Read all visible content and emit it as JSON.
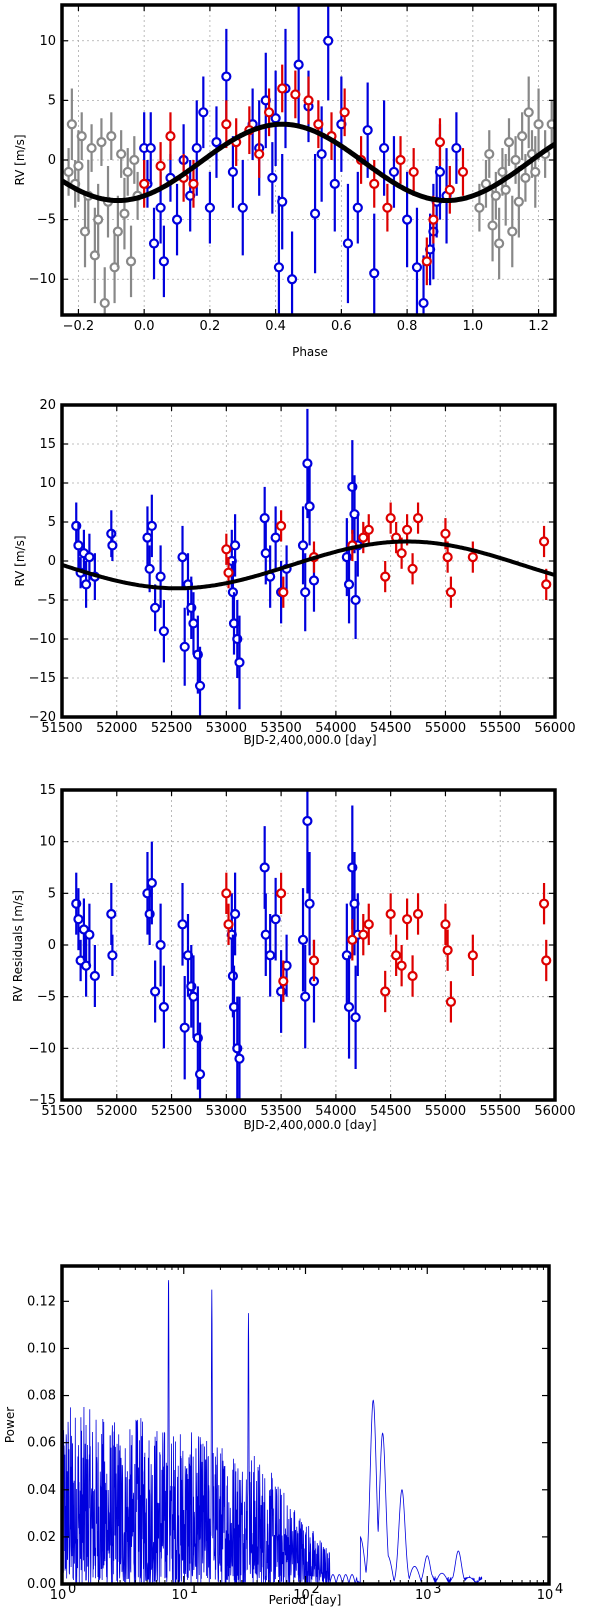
{
  "colors": {
    "old_data": "#888888",
    "blue_data": "#0000dd",
    "red_data": "#dd0000",
    "model": "#000000",
    "periodogram": "#0000dd"
  },
  "chart_data": [
    {
      "type": "scatter",
      "panel": "phase",
      "xlabel": "Phase",
      "ylabel": "RV [m/s]",
      "xlim": [
        -0.25,
        1.25
      ],
      "ylim": [
        -13,
        13
      ],
      "xticks": [
        -0.2,
        0.0,
        0.2,
        0.4,
        0.6,
        0.8,
        1.0,
        1.2
      ],
      "xtick_labels": [
        "−0.2",
        "0.0",
        "0.2",
        "0.4",
        "0.6",
        "0.8",
        "1.0",
        "1.2"
      ],
      "yticks": [
        -10,
        -5,
        0,
        5,
        10
      ],
      "ytick_labels": [
        "−10",
        "−5",
        "0",
        "5",
        "10"
      ],
      "grid": true,
      "model": {
        "type": "sine",
        "offset": -0.2,
        "amplitude": 3.2,
        "phase_of_max": 0.42
      },
      "series": [
        {
          "name": "extended phase (repeated)",
          "color": "#888888",
          "x": [
            -0.23,
            -0.22,
            -0.21,
            -0.2,
            -0.19,
            -0.18,
            -0.17,
            -0.16,
            -0.15,
            -0.14,
            -0.13,
            -0.12,
            -0.11,
            -0.1,
            -0.09,
            -0.08,
            -0.07,
            -0.06,
            -0.05,
            -0.04,
            -0.03,
            -0.02,
            1.02,
            1.04,
            1.05,
            1.06,
            1.07,
            1.08,
            1.09,
            1.1,
            1.11,
            1.12,
            1.13,
            1.14,
            1.15,
            1.16,
            1.17,
            1.18,
            1.19,
            1.2,
            1.22,
            1.24
          ],
          "y": [
            -1.0,
            3.0,
            -2.0,
            -0.5,
            2.0,
            -6.0,
            -3.0,
            1.0,
            -8.0,
            -5.0,
            1.5,
            -12.0,
            -3.5,
            2.0,
            -9.0,
            -6.0,
            0.5,
            -4.5,
            -1.0,
            -8.5,
            0.0,
            -3.0,
            -4.0,
            -2.0,
            0.5,
            -5.5,
            -3.0,
            -7.0,
            -1.0,
            -2.5,
            1.5,
            -6.0,
            0.0,
            -3.5,
            2.0,
            -1.5,
            4.0,
            0.5,
            -1.0,
            3.0,
            0.5,
            3.0
          ],
          "err": [
            2,
            3,
            2,
            3,
            2,
            3,
            3,
            2,
            4,
            3,
            2,
            3,
            3,
            2,
            3,
            3,
            2,
            3,
            2,
            3,
            2,
            2,
            2,
            2,
            2,
            3,
            2,
            3,
            2,
            3,
            2,
            3,
            2,
            3,
            2,
            2,
            3,
            2,
            3,
            3,
            2,
            2
          ]
        },
        {
          "name": "blue",
          "color": "#0000dd",
          "x": [
            0.0,
            0.01,
            0.02,
            0.03,
            0.05,
            0.06,
            0.08,
            0.1,
            0.12,
            0.14,
            0.16,
            0.18,
            0.2,
            0.22,
            0.25,
            0.27,
            0.3,
            0.33,
            0.35,
            0.37,
            0.39,
            0.4,
            0.41,
            0.42,
            0.43,
            0.45,
            0.47,
            0.5,
            0.52,
            0.54,
            0.56,
            0.58,
            0.6,
            0.62,
            0.65,
            0.68,
            0.7,
            0.73,
            0.76,
            0.8,
            0.83,
            0.85,
            0.87,
            0.88,
            0.89,
            0.9,
            0.92,
            0.95
          ],
          "y": [
            1.0,
            -2.0,
            1.0,
            -7.0,
            -4.0,
            -8.5,
            -1.5,
            -5.0,
            0.0,
            -3.0,
            1.0,
            4.0,
            -4.0,
            1.5,
            7.0,
            -1.0,
            -4.0,
            3.0,
            1.0,
            5.0,
            -1.5,
            3.5,
            -9.0,
            -3.5,
            6.0,
            -10.0,
            8.0,
            4.5,
            -4.5,
            0.5,
            10.0,
            -2.0,
            3.0,
            -7.0,
            -4.0,
            2.5,
            -9.5,
            1.0,
            -1.0,
            -5.0,
            -9.0,
            -12.0,
            -7.5,
            -6.0,
            -3.5,
            -1.0,
            -3.0,
            1.0
          ],
          "err": [
            3,
            2,
            3,
            3,
            3,
            3,
            2,
            3,
            3,
            3,
            4,
            3,
            3,
            3,
            4,
            3,
            4,
            3,
            4,
            4,
            3,
            4,
            6,
            4,
            5,
            4,
            5,
            3,
            5,
            4,
            5,
            4,
            4,
            5,
            3,
            4,
            5,
            4,
            3,
            4,
            5,
            4,
            3,
            4,
            3,
            4,
            4,
            3
          ]
        },
        {
          "name": "red",
          "color": "#dd0000",
          "x": [
            0.0,
            0.05,
            0.08,
            0.12,
            0.15,
            0.25,
            0.28,
            0.32,
            0.35,
            0.38,
            0.42,
            0.46,
            0.5,
            0.53,
            0.57,
            0.61,
            0.66,
            0.7,
            0.74,
            0.78,
            0.82,
            0.86,
            0.88,
            0.9,
            0.93,
            0.97
          ],
          "y": [
            -2.0,
            -0.5,
            2.0,
            -1.5,
            -2.0,
            3.0,
            1.5,
            2.5,
            0.5,
            4.0,
            6.0,
            5.5,
            5.0,
            3.0,
            2.0,
            4.0,
            0.0,
            -2.0,
            -4.0,
            0.0,
            -1.0,
            -8.5,
            -5.0,
            1.5,
            -2.5,
            -1.0
          ],
          "err": [
            2,
            2,
            2,
            2,
            2,
            2,
            2,
            2,
            2,
            2,
            2,
            2,
            2,
            2,
            2,
            2,
            2,
            2,
            2,
            2,
            2,
            2,
            2,
            2,
            2,
            2
          ]
        }
      ]
    },
    {
      "type": "scatter",
      "panel": "time",
      "xlabel": "BJD-2,400,000.0 [day]",
      "ylabel": "RV [m/s]",
      "xlim": [
        51500,
        56000
      ],
      "ylim": [
        -20,
        20
      ],
      "xticks": [
        51500,
        52000,
        52500,
        53000,
        53500,
        54000,
        54500,
        55000,
        55500,
        56000
      ],
      "xtick_labels": [
        "51500",
        "52000",
        "52500",
        "53000",
        "53500",
        "54000",
        "54500",
        "55000",
        "55500",
        "56000"
      ],
      "yticks": [
        -20,
        -15,
        -10,
        -5,
        0,
        5,
        10,
        15,
        20
      ],
      "ytick_labels": [
        "−20",
        "−15",
        "−10",
        "−5",
        "0",
        "5",
        "10",
        "15",
        "20"
      ],
      "grid": true,
      "model": {
        "type": "sine",
        "offset": -0.5,
        "amplitude": 3.0,
        "period": 4200,
        "t_max": 54650
      },
      "series": [
        {
          "name": "blue",
          "color": "#0000dd",
          "x": [
            51630,
            51650,
            51670,
            51700,
            51720,
            51750,
            51800,
            51950,
            51960,
            52280,
            52300,
            52320,
            52350,
            52400,
            52430,
            52600,
            52620,
            52650,
            52680,
            52700,
            52740,
            52760,
            53050,
            53060,
            53070,
            53080,
            53100,
            53120,
            53350,
            53360,
            53400,
            53450,
            53500,
            53550,
            53700,
            53720,
            53740,
            53760,
            53800,
            54100,
            54120,
            54150,
            54170,
            54180,
            54200
          ],
          "y": [
            4.5,
            2.0,
            -1.5,
            1.0,
            -3.0,
            0.5,
            -2.0,
            3.5,
            2.0,
            3.0,
            -1.0,
            4.5,
            -6.0,
            -2.0,
            -9.0,
            0.5,
            -11.0,
            -3.0,
            -6.0,
            -8.0,
            -12.0,
            -16.0,
            0.0,
            -4.0,
            -8.0,
            2.0,
            -10.0,
            -13.0,
            5.5,
            1.0,
            -2.0,
            3.0,
            -4.0,
            -1.0,
            2.0,
            -4.0,
            12.5,
            7.0,
            -2.5,
            0.5,
            -3.0,
            9.5,
            6.0,
            -5.0,
            2.0
          ],
          "err": [
            3,
            3,
            2,
            3,
            3,
            3,
            3,
            3,
            2,
            4,
            3,
            4,
            3,
            4,
            4,
            4,
            5,
            4,
            4,
            4,
            5,
            5,
            4,
            4,
            4,
            4,
            5,
            6,
            4,
            4,
            4,
            4,
            4,
            3,
            5,
            5,
            7,
            5,
            4,
            5,
            5,
            6,
            5,
            5,
            4
          ]
        },
        {
          "name": "red",
          "color": "#dd0000",
          "x": [
            53000,
            53020,
            53500,
            53520,
            53800,
            54150,
            54250,
            54300,
            54450,
            54500,
            54550,
            54600,
            54650,
            54700,
            54750,
            55000,
            55020,
            55050,
            55250,
            55900,
            55920
          ],
          "y": [
            1.5,
            -1.5,
            4.5,
            -4.0,
            0.5,
            2.0,
            3.0,
            4.0,
            -2.0,
            5.5,
            3.0,
            1.0,
            4.0,
            -1.0,
            5.5,
            3.5,
            0.5,
            -4.0,
            0.5,
            2.5,
            -3.0
          ],
          "err": [
            2,
            2,
            2,
            2,
            2,
            2,
            2,
            2,
            2,
            2,
            2,
            2,
            2,
            2,
            2,
            2,
            2,
            2,
            2,
            2,
            2
          ]
        }
      ]
    },
    {
      "type": "scatter",
      "panel": "residuals",
      "xlabel": "BJD-2,400,000.0 [day]",
      "ylabel": "RV Residuals [m/s]",
      "xlim": [
        51500,
        56000
      ],
      "ylim": [
        -15,
        15
      ],
      "xticks": [
        51500,
        52000,
        52500,
        53000,
        53500,
        54000,
        54500,
        55000,
        55500,
        56000
      ],
      "xtick_labels": [
        "51500",
        "52000",
        "52500",
        "53000",
        "53500",
        "54000",
        "54500",
        "55000",
        "55500",
        "56000"
      ],
      "yticks": [
        -15,
        -10,
        -5,
        0,
        5,
        10,
        15
      ],
      "ytick_labels": [
        "−15",
        "−10",
        "−5",
        "0",
        "5",
        "10",
        "15"
      ],
      "grid": true,
      "series": [
        {
          "name": "blue",
          "color": "#0000dd",
          "x": [
            51630,
            51650,
            51670,
            51700,
            51720,
            51750,
            51800,
            51950,
            51960,
            52280,
            52300,
            52320,
            52350,
            52400,
            52430,
            52600,
            52620,
            52650,
            52680,
            52700,
            52740,
            52760,
            53050,
            53060,
            53070,
            53080,
            53100,
            53120,
            53350,
            53360,
            53400,
            53450,
            53500,
            53550,
            53700,
            53720,
            53740,
            53760,
            53800,
            54100,
            54120,
            54150,
            54170,
            54180,
            54200
          ],
          "y": [
            4.0,
            2.5,
            -1.5,
            1.5,
            -2.0,
            1.0,
            -3.0,
            3.0,
            -1.0,
            5.0,
            3.0,
            6.0,
            -4.5,
            0.0,
            -6.0,
            2.0,
            -8.0,
            -1.0,
            -4.0,
            -5.0,
            -9.0,
            -12.5,
            1.0,
            -3.0,
            -6.0,
            3.0,
            -10.0,
            -11.0,
            7.5,
            1.0,
            -1.0,
            2.5,
            -4.5,
            -2.0,
            0.5,
            -5.0,
            12.0,
            4.0,
            -3.5,
            -1.0,
            -6.0,
            7.5,
            4.0,
            -7.0,
            1.0
          ],
          "err": [
            3,
            3,
            2,
            3,
            3,
            3,
            3,
            3,
            2,
            4,
            3,
            4,
            3,
            4,
            4,
            4,
            5,
            4,
            4,
            4,
            5,
            5,
            4,
            4,
            4,
            4,
            5,
            6,
            4,
            4,
            4,
            4,
            4,
            3,
            5,
            5,
            7,
            5,
            4,
            5,
            5,
            6,
            5,
            5,
            4
          ]
        },
        {
          "name": "red",
          "color": "#dd0000",
          "x": [
            53000,
            53020,
            53500,
            53520,
            53800,
            54150,
            54250,
            54300,
            54450,
            54500,
            54550,
            54600,
            54650,
            54700,
            54750,
            55000,
            55020,
            55050,
            55250,
            55900,
            55920
          ],
          "y": [
            5.0,
            2.0,
            5.0,
            -3.5,
            -1.5,
            0.5,
            1.0,
            2.0,
            -4.5,
            3.0,
            -1.0,
            -2.0,
            2.5,
            -3.0,
            3.0,
            2.0,
            -0.5,
            -5.5,
            -1.0,
            4.0,
            -1.5
          ],
          "err": [
            2,
            2,
            2,
            2,
            2,
            2,
            2,
            2,
            2,
            2,
            2,
            2,
            2,
            2,
            2,
            2,
            2,
            2,
            2,
            2,
            2
          ]
        }
      ]
    },
    {
      "type": "line",
      "panel": "periodogram",
      "xlabel": "Period [day]",
      "ylabel": "Power",
      "xscale": "log",
      "xlim": [
        1,
        10000
      ],
      "ylim": [
        0.0,
        0.135
      ],
      "xtick_labels": [
        "10",
        "10",
        "10",
        "10",
        "10"
      ],
      "xtick_exponents": [
        "0",
        "1",
        "2",
        "3",
        "4"
      ],
      "yticks": [
        0.0,
        0.02,
        0.04,
        0.06,
        0.08,
        0.1,
        0.12
      ],
      "ytick_labels": [
        "0.00",
        "0.02",
        "0.04",
        "0.06",
        "0.08",
        "0.10",
        "0.12"
      ],
      "grid": false,
      "peaks": [
        {
          "period": 7.5,
          "power": 0.132
        },
        {
          "period": 17,
          "power": 0.125
        },
        {
          "period": 34,
          "power": 0.115
        },
        {
          "period": 360,
          "power": 0.078
        },
        {
          "period": 430,
          "power": 0.064
        },
        {
          "period": 620,
          "power": 0.04
        },
        {
          "period": 1000,
          "power": 0.012
        },
        {
          "period": 1800,
          "power": 0.014
        }
      ]
    }
  ]
}
